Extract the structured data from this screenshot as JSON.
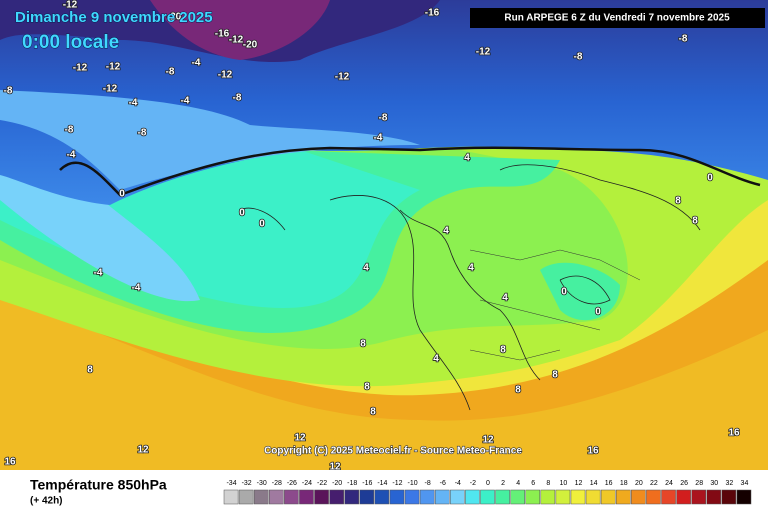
{
  "header": {
    "date": "Dimanche 9 novembre 2025",
    "time": "0:00 locale",
    "run": "Run ARPEGE 6 Z du Vendredi 7 novembre 2025"
  },
  "footer": {
    "variable": "Température 850hPa",
    "lead": "(+ 42h)",
    "copyright": "Copyright (C) 2025 Meteociel.fr - Source Meteo-France"
  },
  "scale": {
    "ticks": [
      -34,
      -32,
      -30,
      -28,
      -26,
      -24,
      -22,
      -20,
      -18,
      -16,
      -14,
      -12,
      -10,
      -8,
      -6,
      -4,
      -2,
      0,
      2,
      4,
      6,
      8,
      10,
      12,
      14,
      16,
      18,
      20,
      22,
      24,
      26,
      28,
      30,
      32,
      34
    ],
    "colors": [
      "#d2d2d2",
      "#aaaaaa",
      "#8a7a8a",
      "#a07aa0",
      "#8c4a8c",
      "#782878",
      "#5a145a",
      "#461e6e",
      "#32287d",
      "#1e3c96",
      "#1e50b4",
      "#2864d2",
      "#3c78e6",
      "#5096f0",
      "#64b4f5",
      "#78d2fa",
      "#50e6f0",
      "#3cf0c8",
      "#46f0a0",
      "#64f078",
      "#8cf050",
      "#b4f03c",
      "#d2f03c",
      "#f0f03c",
      "#f0dc32",
      "#f0c828",
      "#f0aa1e",
      "#f08c1e",
      "#f06e1e",
      "#e64628",
      "#d21e1e",
      "#aa141e",
      "#820a14",
      "#5a050a",
      "#140000"
    ]
  },
  "map": {
    "contour_labels": [
      -12,
      -16,
      -20,
      -16,
      -12,
      -20,
      -12,
      -8,
      -8,
      -12,
      -12,
      -8,
      -4,
      -12,
      -12,
      -8,
      -12,
      -4,
      -4,
      -8,
      -8,
      -4,
      -8,
      -8,
      -4,
      0,
      0,
      0,
      4,
      0,
      -4,
      -4,
      4,
      4,
      4,
      4,
      0,
      0,
      8,
      8,
      8,
      8,
      8,
      8,
      12,
      12,
      12,
      12,
      16,
      16,
      16,
      4,
      8,
      8,
      8
    ]
  }
}
